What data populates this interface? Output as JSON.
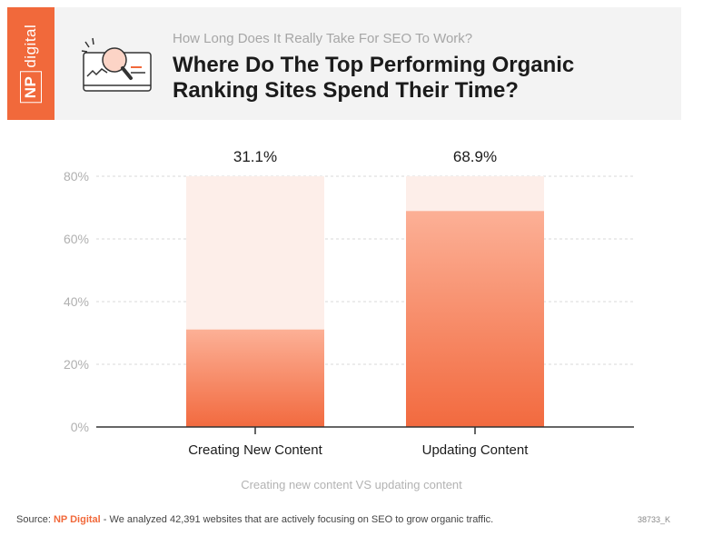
{
  "brand": {
    "logo_np": "NP",
    "logo_word": "digital",
    "accent_color": "#f1693b"
  },
  "header": {
    "subtitle": "How Long Does It Really Take For SEO To Work?",
    "title_line1": "Where Do The Top Performing Organic",
    "title_line2": "Ranking Sites Spend Their Time?"
  },
  "chart_data": {
    "type": "bar",
    "categories": [
      "Creating New Content",
      "Updating Content"
    ],
    "values": [
      31.1,
      68.9
    ],
    "value_labels": [
      "31.1%",
      "68.9%"
    ],
    "ylim": [
      0,
      80
    ],
    "yticks": [
      0,
      20,
      40,
      60,
      80
    ],
    "ytick_labels": [
      "0%",
      "20%",
      "40%",
      "60%",
      "80%"
    ],
    "grid": true,
    "title": "",
    "xlabel": "Creating new content VS updating content",
    "ylabel": "",
    "bar_color_top": "#fcb096",
    "bar_color_bottom": "#f26a3f",
    "track_color": "#fdeee9"
  },
  "footer": {
    "source_prefix": "Source: ",
    "source_brand": "NP Digital",
    "source_text": " - We analyzed 42,391 websites that are actively focusing on SEO to grow organic traffic.",
    "code": "38733_K"
  }
}
